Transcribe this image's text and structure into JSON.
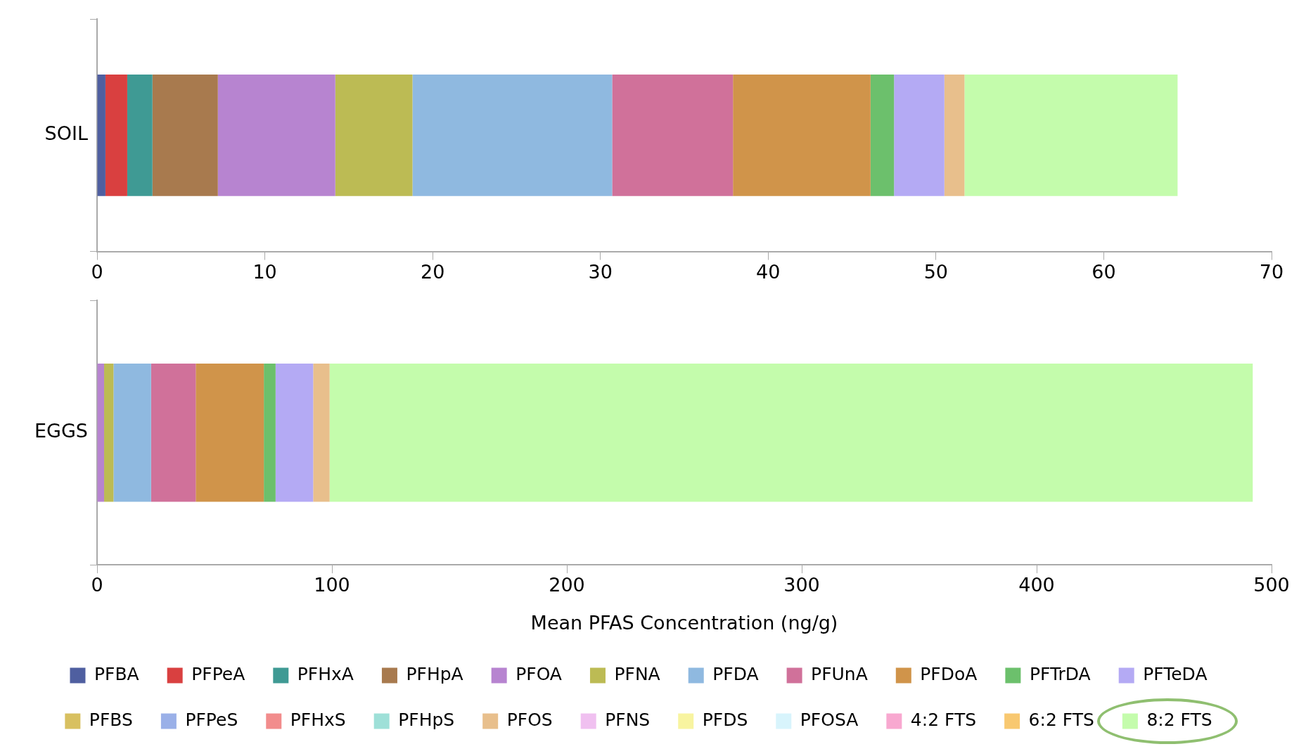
{
  "chart_data": [
    {
      "type": "bar",
      "orientation": "horizontal",
      "stacked": true,
      "categories": [
        "SOIL"
      ],
      "xlim": [
        0,
        70
      ],
      "xticks": [
        0,
        10,
        20,
        30,
        40,
        50,
        60,
        70
      ],
      "grid": false,
      "legend": false,
      "series": [
        {
          "color": "#4f5fa0",
          "values": [
            0.5
          ]
        },
        {
          "color": "#d94040",
          "values": [
            1.3
          ]
        },
        {
          "color": "#3f9a94",
          "values": [
            1.5
          ]
        },
        {
          "color": "#a87a4e",
          "values": [
            3.9
          ]
        },
        {
          "color": "#b784d0",
          "values": [
            7.0
          ]
        },
        {
          "color": "#bcbb54",
          "values": [
            4.6
          ]
        },
        {
          "color": "#8fb9e0",
          "values": [
            11.9
          ]
        },
        {
          "color": "#d0719a",
          "values": [
            7.2
          ]
        },
        {
          "color": "#d0944a",
          "values": [
            8.2
          ]
        },
        {
          "color": "#6cc06c",
          "values": [
            1.4
          ]
        },
        {
          "color": "#b4aaf4",
          "values": [
            3.0
          ]
        },
        {
          "color": "#e8bf8c",
          "values": [
            1.2
          ]
        },
        {
          "color": "#c4fcac",
          "values": [
            12.7
          ]
        }
      ]
    },
    {
      "type": "bar",
      "orientation": "horizontal",
      "stacked": true,
      "categories": [
        "EGGS"
      ],
      "xlim": [
        0,
        500
      ],
      "xticks": [
        0,
        100,
        200,
        300,
        400,
        500
      ],
      "grid": false,
      "legend": "bottom",
      "xlabel": "Mean PFAS Concentration (ng/g)",
      "series": [
        {
          "name": "PFBA",
          "color": "#4f5fa0",
          "values": [
            null
          ]
        },
        {
          "name": "PFPeA",
          "color": "#d94040",
          "values": [
            null
          ]
        },
        {
          "name": "PFHxA",
          "color": "#3f9a94",
          "values": [
            null
          ]
        },
        {
          "name": "PFHpA",
          "color": "#a87a4e",
          "values": [
            null
          ]
        },
        {
          "name": "PFOA",
          "color": "#b784d0",
          "values": [
            3
          ]
        },
        {
          "name": "PFNA",
          "color": "#bcbb54",
          "values": [
            4
          ]
        },
        {
          "name": "PFDA",
          "color": "#8fb9e0",
          "values": [
            16
          ]
        },
        {
          "name": "PFUnA",
          "color": "#d0719a",
          "values": [
            19
          ]
        },
        {
          "name": "PFDoA",
          "color": "#d0944a",
          "values": [
            29
          ]
        },
        {
          "name": "PFTrDA",
          "color": "#6cc06c",
          "values": [
            5
          ]
        },
        {
          "name": "PFTeDA",
          "color": "#b4aaf4",
          "values": [
            16
          ]
        },
        {
          "name": "PFBS",
          "color": "#d8c060",
          "values": [
            null
          ]
        },
        {
          "name": "PFPeS",
          "color": "#9ab0e8",
          "values": [
            null
          ]
        },
        {
          "name": "PFHxS",
          "color": "#f28c8c",
          "values": [
            null
          ]
        },
        {
          "name": "PFHpS",
          "color": "#9ee0d8",
          "values": [
            null
          ]
        },
        {
          "name": "PFOS",
          "color": "#e8bf8c",
          "values": [
            7
          ]
        },
        {
          "name": "PFNS",
          "color": "#f0c0f0",
          "values": [
            null
          ]
        },
        {
          "name": "PFDS",
          "color": "#f8f4a0",
          "values": [
            null
          ]
        },
        {
          "name": "PFOSA",
          "color": "#d8f4fc",
          "values": [
            null
          ]
        },
        {
          "name": "4:2 FTS",
          "color": "#f8a8d0",
          "values": [
            null
          ]
        },
        {
          "name": "6:2 FTS",
          "color": "#f8c870",
          "values": [
            null
          ]
        },
        {
          "name": "8:2 FTS",
          "color": "#c4fcac",
          "values": [
            393
          ]
        }
      ]
    }
  ]
}
